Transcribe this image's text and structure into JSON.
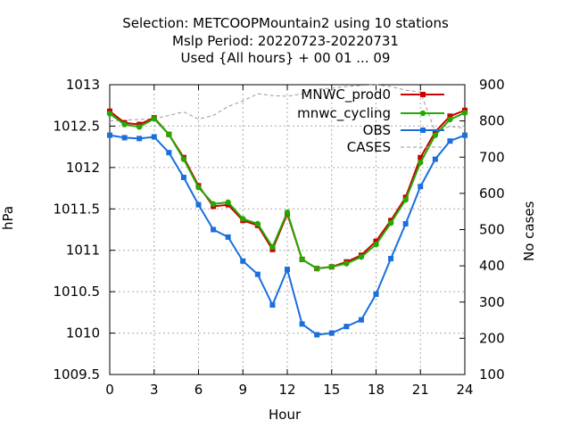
{
  "title_lines": [
    "Selection: METCOOPMountain2 using    10 stations",
    "Mslp   Period: 20220723-20220731",
    "Used {All hours} + 00 01 ... 09"
  ],
  "chart_data": {
    "type": "line",
    "xlabel": "Hour",
    "ylabel": "hPa",
    "y2label": "No cases",
    "xlim": [
      0,
      24
    ],
    "ylim": [
      1009.5,
      1013
    ],
    "y2lim": [
      100,
      900
    ],
    "x_ticks": [
      0,
      3,
      6,
      9,
      12,
      15,
      18,
      21,
      24
    ],
    "y_ticks": [
      "1009.5",
      "1010",
      "1010.5",
      "1011",
      "1011.5",
      "1012",
      "1012.5",
      "1013"
    ],
    "y2_ticks": [
      "100",
      "200",
      "300",
      "400",
      "500",
      "600",
      "700",
      "800",
      "900"
    ],
    "grid": true,
    "legend_position": "top-right",
    "x": [
      0,
      1,
      2,
      3,
      4,
      5,
      6,
      7,
      8,
      9,
      10,
      11,
      12,
      13,
      14,
      15,
      16,
      17,
      18,
      19,
      20,
      21,
      22,
      23,
      24
    ],
    "series": [
      {
        "name": "MNWC_prod0",
        "axis": "y",
        "color": "#cc0000",
        "marker": "square",
        "values": [
          1012.68,
          1012.54,
          1012.52,
          1012.6,
          1012.4,
          1012.12,
          1011.78,
          1011.53,
          1011.55,
          1011.36,
          1011.3,
          1011.01,
          1011.44,
          1010.89,
          1010.78,
          1010.8,
          1010.86,
          1010.94,
          1011.11,
          1011.36,
          1011.64,
          1012.12,
          1012.43,
          1012.62,
          1012.69
        ]
      },
      {
        "name": "mnwc_cycling",
        "axis": "y",
        "color": "#22aa00",
        "marker": "circle",
        "values": [
          1012.65,
          1012.52,
          1012.49,
          1012.59,
          1012.4,
          1012.1,
          1011.76,
          1011.56,
          1011.58,
          1011.38,
          1011.32,
          1011.04,
          1011.46,
          1010.89,
          1010.78,
          1010.8,
          1010.84,
          1010.92,
          1011.07,
          1011.33,
          1011.61,
          1012.06,
          1012.39,
          1012.58,
          1012.66
        ]
      },
      {
        "name": "OBS",
        "axis": "y",
        "color": "#1a6fdc",
        "marker": "square",
        "values": [
          1012.39,
          1012.36,
          1012.35,
          1012.37,
          1012.18,
          1011.88,
          1011.55,
          1011.25,
          1011.16,
          1010.87,
          1010.71,
          1010.34,
          1010.77,
          1010.11,
          1009.98,
          1010.0,
          1010.08,
          1010.16,
          1010.47,
          1010.9,
          1011.32,
          1011.77,
          1012.1,
          1012.32,
          1012.39
        ]
      },
      {
        "name": "CASES",
        "axis": "y2",
        "color": "#999999",
        "dash": true,
        "values": [
          800,
          802,
          804,
          806,
          815,
          825,
          805,
          815,
          840,
          855,
          875,
          870,
          868,
          875,
          888,
          890,
          895,
          898,
          900,
          895,
          885,
          880,
          770,
          785,
          780
        ]
      }
    ]
  }
}
